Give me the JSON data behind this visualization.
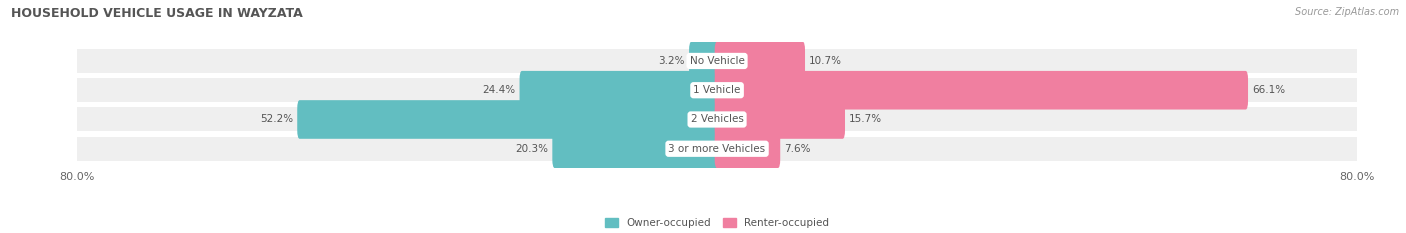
{
  "title": "HOUSEHOLD VEHICLE USAGE IN WAYZATA",
  "source": "Source: ZipAtlas.com",
  "categories": [
    "No Vehicle",
    "1 Vehicle",
    "2 Vehicles",
    "3 or more Vehicles"
  ],
  "owner_values": [
    3.2,
    24.4,
    52.2,
    20.3
  ],
  "renter_values": [
    10.7,
    66.1,
    15.7,
    7.6
  ],
  "owner_color": "#62bec1",
  "renter_color": "#f07fa0",
  "owner_label": "Owner-occupied",
  "renter_label": "Renter-occupied",
  "axis_max": 80.0,
  "x_tick_left": "80.0%",
  "x_tick_right": "80.0%",
  "background_color": "#ffffff",
  "row_bg_color": "#efefef",
  "title_fontsize": 9,
  "source_fontsize": 7,
  "label_fontsize": 7.5,
  "tick_fontsize": 8,
  "value_fontsize": 7.5
}
